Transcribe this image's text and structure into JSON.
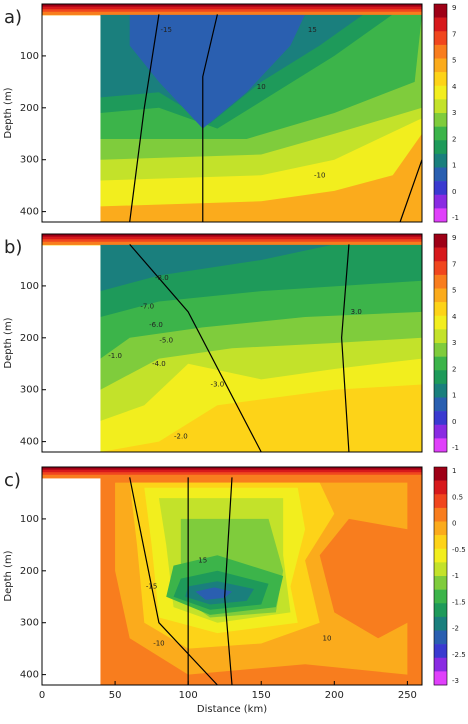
{
  "chart_data": [
    {
      "type": "contour",
      "label": "a)",
      "ylabel": "Depth (m)",
      "xlim": [
        0,
        260
      ],
      "ylim": [
        0,
        420
      ],
      "yticks": [
        100,
        200,
        300,
        400
      ],
      "colorbar_labels": [
        9,
        7,
        5,
        4,
        3,
        2,
        1,
        0,
        -1
      ],
      "colorbar_colors": [
        "#9e0016",
        "#d7191c",
        "#f0461e",
        "#f87d1e",
        "#fbab1c",
        "#fdd318",
        "#f2ee1e",
        "#c3e22a",
        "#7fcc3c",
        "#3cb44a",
        "#1e9a5a",
        "#1a7f7d",
        "#2a5fb0",
        "#3a3ad0",
        "#8a2be2",
        "#e040fb"
      ],
      "annotations": [
        "-15",
        "15",
        "10",
        "-10"
      ]
    },
    {
      "type": "contour",
      "label": "b)",
      "ylabel": "Depth (m)",
      "xlim": [
        0,
        260
      ],
      "ylim": [
        0,
        420
      ],
      "yticks": [
        100,
        200,
        300,
        400
      ],
      "colorbar_labels": [
        9,
        7,
        5,
        4,
        3,
        2,
        1,
        0,
        -1
      ],
      "colorbar_colors": [
        "#9e0016",
        "#d7191c",
        "#f0461e",
        "#f87d1e",
        "#fbab1c",
        "#fdd318",
        "#f2ee1e",
        "#c3e22a",
        "#7fcc3c",
        "#3cb44a",
        "#1e9a5a",
        "#1a7f7d",
        "#2a5fb0",
        "#3a3ad0",
        "#8a2be2",
        "#e040fb"
      ],
      "annotations": [
        "-8.0",
        "-7.0",
        "-6.0",
        "-5.0",
        "-4.0",
        "-3.0",
        "-2.0",
        "-1.0",
        "3.0"
      ]
    },
    {
      "type": "contour",
      "label": "c)",
      "ylabel": "Depth (m)",
      "xlabel": "Distance (km)",
      "xlim": [
        0,
        260
      ],
      "ylim": [
        0,
        420
      ],
      "yticks": [
        100,
        200,
        300,
        400
      ],
      "xticks": [
        0,
        50,
        100,
        150,
        200,
        250
      ],
      "colorbar_labels": [
        1,
        0.5,
        0,
        -0.5,
        -1,
        -1.5,
        -2,
        -2.5,
        -3
      ],
      "colorbar_colors": [
        "#9e0016",
        "#d7191c",
        "#f0461e",
        "#f87d1e",
        "#fbab1c",
        "#fdd318",
        "#f2ee1e",
        "#c3e22a",
        "#7fcc3c",
        "#3cb44a",
        "#1e9a5a",
        "#1a7f7d",
        "#2a5fb0",
        "#3a3ad0",
        "#8a2be2",
        "#e040fb"
      ],
      "annotations": [
        "-15",
        "15",
        "10",
        "-10"
      ]
    }
  ]
}
